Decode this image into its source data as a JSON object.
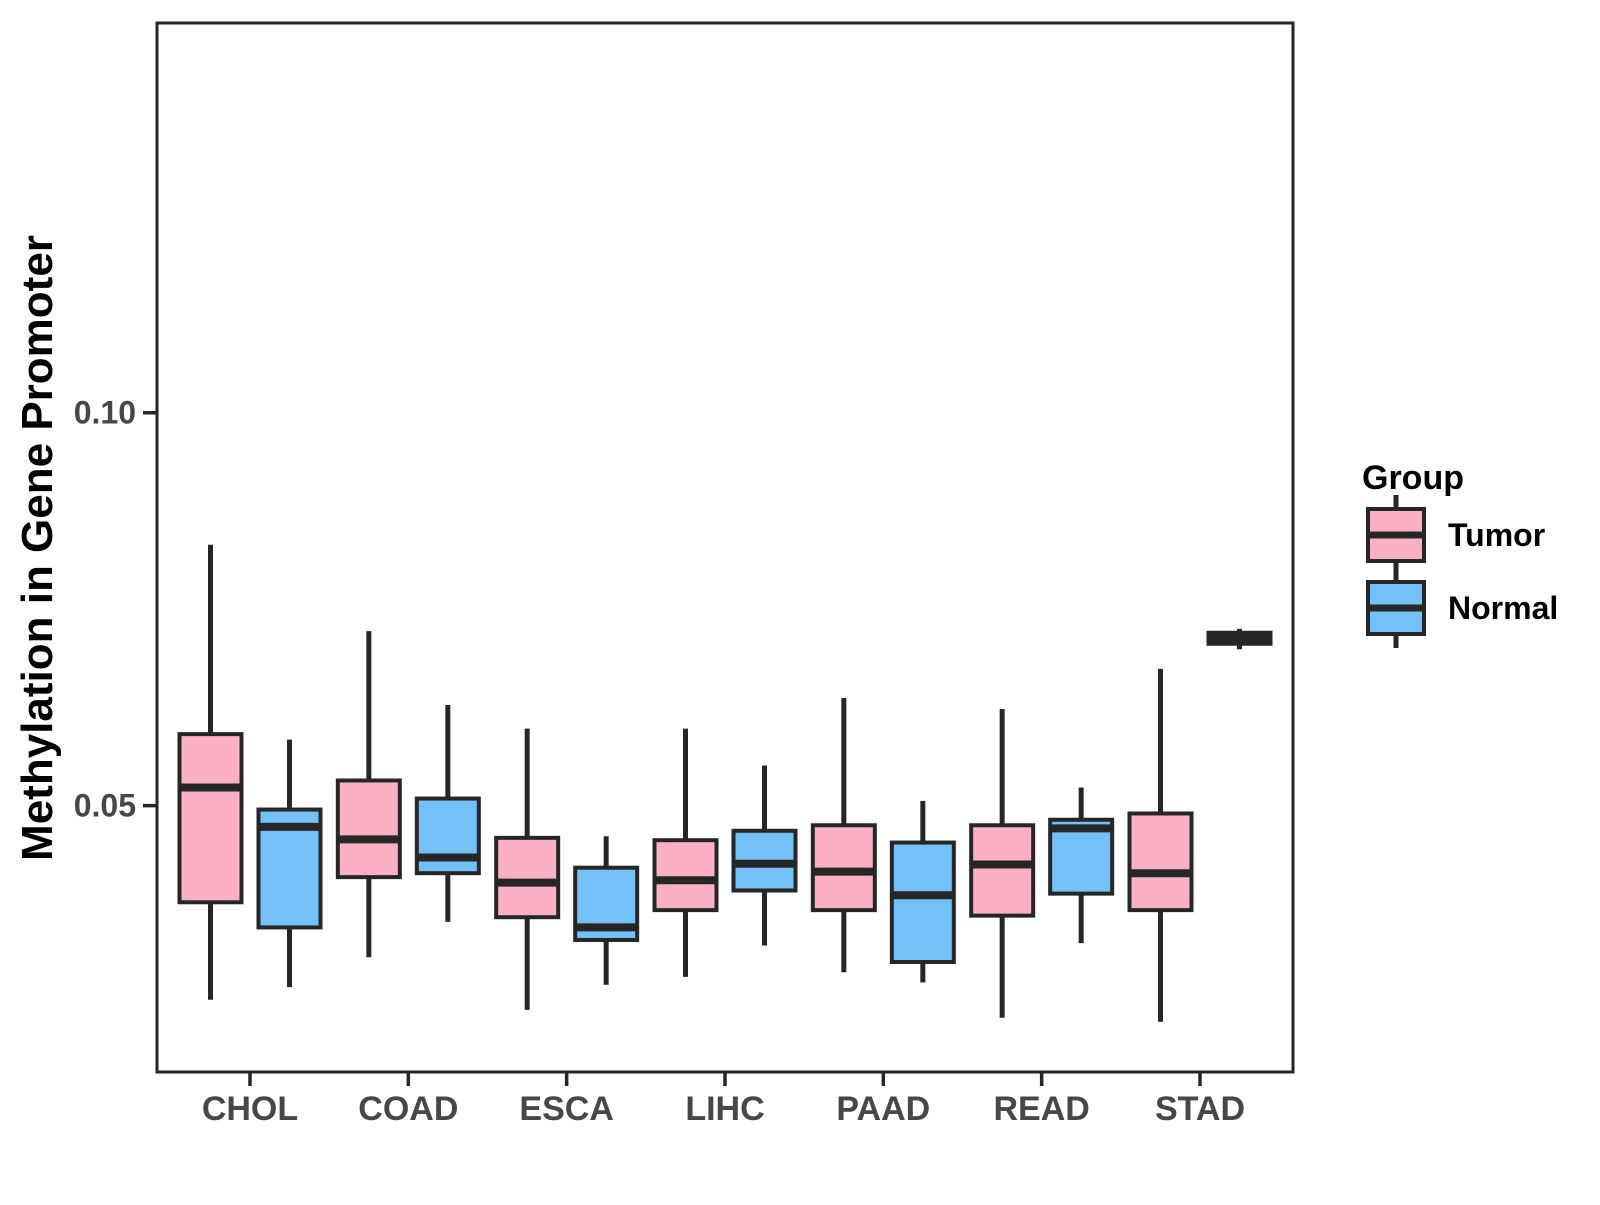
{
  "figure": {
    "background": "#ffffff",
    "y_axis": {
      "title": "Methylation in Gene Promoter",
      "tick_labels": [
        "0.05",
        "0.10"
      ],
      "tick_values": [
        0.05,
        0.1
      ]
    },
    "x_axis": {
      "categories": [
        "CHOL",
        "COAD",
        "ESCA",
        "LIHC",
        "PAAD",
        "READ",
        "STAD"
      ]
    },
    "legend": {
      "title": "Group",
      "entries": [
        {
          "label": "Tumor",
          "color": "#FBB1C3"
        },
        {
          "label": "Normal",
          "color": "#74C0F8"
        }
      ]
    },
    "colors": {
      "stroke": "#262626",
      "axis_text": "#474747",
      "axis_title": "#000000",
      "panel_border": "#262626"
    }
  },
  "chart_data": {
    "type": "boxplot",
    "title": "",
    "xlabel": "",
    "ylabel": "Methylation in Gene Promoter",
    "categories": [
      "CHOL",
      "COAD",
      "ESCA",
      "LIHC",
      "PAAD",
      "READ",
      "STAD"
    ],
    "ylim": [
      0.0161,
      0.1496
    ],
    "yticks": [
      0.05,
      0.1
    ],
    "ytick_labels": [
      "0.05",
      "0.10"
    ],
    "grid": false,
    "legend_position": "right-center",
    "series": [
      {
        "name": "Tumor",
        "color": "#FBB1C3",
        "boxes": [
          {
            "category": "CHOL",
            "min": 0.0253,
            "q1": 0.0377,
            "median": 0.0523,
            "q3": 0.0591,
            "max": 0.0832
          },
          {
            "category": "COAD",
            "min": 0.0307,
            "q1": 0.0409,
            "median": 0.0457,
            "q3": 0.0532,
            "max": 0.0722
          },
          {
            "category": "ESCA",
            "min": 0.024,
            "q1": 0.0358,
            "median": 0.0402,
            "q3": 0.0459,
            "max": 0.0598
          },
          {
            "category": "LIHC",
            "min": 0.0282,
            "q1": 0.0367,
            "median": 0.0405,
            "q3": 0.0456,
            "max": 0.0598
          },
          {
            "category": "PAAD",
            "min": 0.0288,
            "q1": 0.0367,
            "median": 0.0416,
            "q3": 0.0475,
            "max": 0.0637
          },
          {
            "category": "READ",
            "min": 0.023,
            "q1": 0.036,
            "median": 0.0425,
            "q3": 0.0475,
            "max": 0.0623
          },
          {
            "category": "STAD",
            "min": 0.0225,
            "q1": 0.0367,
            "median": 0.0414,
            "q3": 0.049,
            "max": 0.0674
          }
        ]
      },
      {
        "name": "Normal",
        "color": "#74C0F8",
        "boxes": [
          {
            "category": "CHOL",
            "min": 0.0269,
            "q1": 0.0345,
            "median": 0.0473,
            "q3": 0.0495,
            "max": 0.0584
          },
          {
            "category": "COAD",
            "min": 0.0352,
            "q1": 0.0414,
            "median": 0.0434,
            "q3": 0.0509,
            "max": 0.0628
          },
          {
            "category": "ESCA",
            "min": 0.0272,
            "q1": 0.0329,
            "median": 0.0345,
            "q3": 0.0421,
            "max": 0.0461
          },
          {
            "category": "LIHC",
            "min": 0.0322,
            "q1": 0.0392,
            "median": 0.0426,
            "q3": 0.0468,
            "max": 0.0551
          },
          {
            "category": "PAAD",
            "min": 0.0275,
            "q1": 0.0301,
            "median": 0.0386,
            "q3": 0.0453,
            "max": 0.0506
          },
          {
            "category": "READ",
            "min": 0.0325,
            "q1": 0.0388,
            "median": 0.0471,
            "q3": 0.0482,
            "max": 0.0523
          },
          {
            "category": "STAD",
            "min": 0.0699,
            "q1": 0.0706,
            "median": 0.0713,
            "q3": 0.072,
            "max": 0.0725
          }
        ]
      }
    ]
  }
}
